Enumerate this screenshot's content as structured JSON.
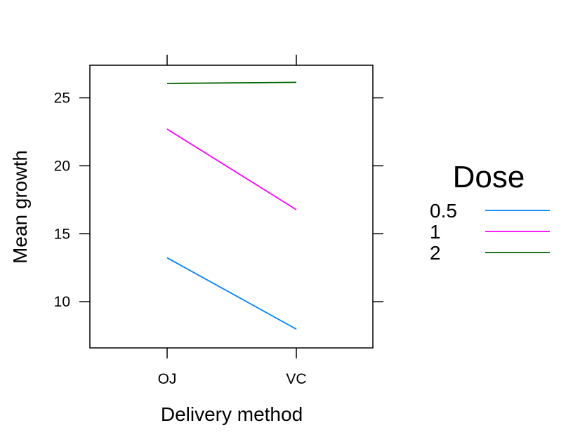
{
  "chart_data": {
    "type": "line",
    "title": "",
    "xlabel": "Delivery method",
    "ylabel": "Mean growth",
    "categories": [
      "OJ",
      "VC"
    ],
    "ylim": [
      6.6,
      27.4
    ],
    "yticks": [
      10,
      15,
      20,
      25
    ],
    "grid": false,
    "legend": {
      "title": "Dose",
      "placement": "right"
    },
    "series": [
      {
        "name": "0.5",
        "values": [
          13.23,
          7.98
        ],
        "color": "#0080ff"
      },
      {
        "name": "1",
        "values": [
          22.7,
          16.77
        ],
        "color": "#ff00ff"
      },
      {
        "name": "2",
        "values": [
          26.06,
          26.14
        ],
        "color": "#006400"
      }
    ]
  }
}
